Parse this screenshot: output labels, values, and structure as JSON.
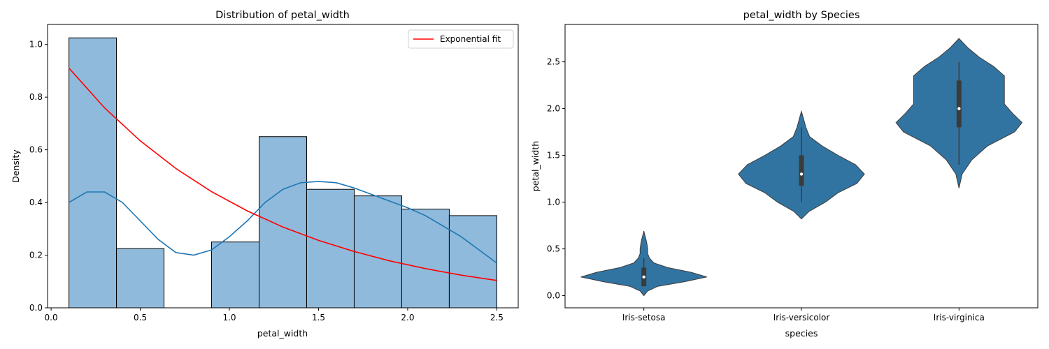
{
  "chart_data": [
    {
      "type": "bar",
      "title": "Distribution of petal_width",
      "xlabel": "petal_width",
      "ylabel": "Density",
      "xlim": [
        -0.02,
        2.62
      ],
      "ylim": [
        0,
        1.076
      ],
      "xticks": [
        "0.0",
        "0.5",
        "1.0",
        "1.5",
        "2.0",
        "2.5"
      ],
      "yticks": [
        "0.0",
        "0.2",
        "0.4",
        "0.6",
        "0.8",
        "1.0"
      ],
      "bar_color": "#8fbadb",
      "bins": [
        {
          "x0": 0.1,
          "x1": 0.3667,
          "value": 1.025
        },
        {
          "x0": 0.3667,
          "x1": 0.6333,
          "value": 0.225
        },
        {
          "x0": 0.6333,
          "x1": 0.9,
          "value": 0.0
        },
        {
          "x0": 0.9,
          "x1": 1.1667,
          "value": 0.25
        },
        {
          "x0": 1.1667,
          "x1": 1.4333,
          "value": 0.65
        },
        {
          "x0": 1.4333,
          "x1": 1.7,
          "value": 0.45
        },
        {
          "x0": 1.7,
          "x1": 1.9667,
          "value": 0.425
        },
        {
          "x0": 1.9667,
          "x1": 2.2333,
          "value": 0.375
        },
        {
          "x0": 2.2333,
          "x1": 2.5,
          "value": 0.35
        }
      ],
      "series": [
        {
          "name": "Exponential fit",
          "color": "#ff0000",
          "x": [
            0.1,
            0.3,
            0.5,
            0.7,
            0.9,
            1.1,
            1.3,
            1.5,
            1.7,
            1.9,
            2.1,
            2.3,
            2.5
          ],
          "y": [
            0.91,
            0.759,
            0.634,
            0.529,
            0.441,
            0.368,
            0.307,
            0.256,
            0.214,
            0.178,
            0.149,
            0.124,
            0.104
          ]
        },
        {
          "color": "#1f77b4",
          "x": [
            0.1,
            0.2,
            0.3,
            0.4,
            0.5,
            0.6,
            0.7,
            0.8,
            0.9,
            1.0,
            1.1,
            1.2,
            1.3,
            1.4,
            1.5,
            1.6,
            1.7,
            1.8,
            1.9,
            2.0,
            2.1,
            2.2,
            2.3,
            2.4,
            2.5
          ],
          "y": [
            0.4,
            0.44,
            0.44,
            0.4,
            0.33,
            0.26,
            0.21,
            0.2,
            0.22,
            0.27,
            0.33,
            0.4,
            0.45,
            0.475,
            0.48,
            0.475,
            0.455,
            0.43,
            0.405,
            0.38,
            0.35,
            0.31,
            0.27,
            0.22,
            0.17
          ]
        }
      ],
      "legend": "upper right"
    },
    {
      "type": "violin",
      "title": "petal_width by Species",
      "xlabel": "species",
      "ylabel": "petal_width",
      "ylim": [
        -0.13,
        2.9
      ],
      "yticks": [
        "0.0",
        "0.5",
        "1.0",
        "1.5",
        "2.0",
        "2.5"
      ],
      "categories": [
        "Iris-setosa",
        "Iris-versicolor",
        "Iris-virginica"
      ],
      "violin_color": "#3274a1",
      "box_color": "#3b3b3b",
      "violins": [
        {
          "category": "Iris-setosa",
          "median": 0.2,
          "q1": 0.1,
          "q3": 0.3,
          "whisker_low": 0.1,
          "whisker_high": 0.4,
          "profile": [
            [
              0.0,
              0.0
            ],
            [
              0.05,
              0.06
            ],
            [
              0.1,
              0.22
            ],
            [
              0.15,
              0.65
            ],
            [
              0.2,
              1.0
            ],
            [
              0.25,
              0.75
            ],
            [
              0.3,
              0.38
            ],
            [
              0.35,
              0.16
            ],
            [
              0.4,
              0.09
            ],
            [
              0.45,
              0.06
            ],
            [
              0.5,
              0.06
            ],
            [
              0.55,
              0.05
            ],
            [
              0.6,
              0.035
            ],
            [
              0.65,
              0.015
            ],
            [
              0.69,
              0.0
            ]
          ]
        },
        {
          "category": "Iris-versicolor",
          "median": 1.3,
          "q1": 1.175,
          "q3": 1.5,
          "whisker_low": 1.0,
          "whisker_high": 1.8,
          "profile": [
            [
              0.82,
              0.0
            ],
            [
              0.9,
              0.12
            ],
            [
              1.0,
              0.38
            ],
            [
              1.1,
              0.58
            ],
            [
              1.2,
              0.88
            ],
            [
              1.3,
              1.0
            ],
            [
              1.4,
              0.86
            ],
            [
              1.5,
              0.58
            ],
            [
              1.6,
              0.33
            ],
            [
              1.7,
              0.13
            ],
            [
              1.8,
              0.07
            ],
            [
              1.9,
              0.03
            ],
            [
              1.97,
              0.0
            ]
          ]
        },
        {
          "category": "Iris-virginica",
          "median": 2.0,
          "q1": 1.8,
          "q3": 2.3,
          "whisker_low": 1.4,
          "whisker_high": 2.5,
          "profile": [
            [
              1.15,
              0.0
            ],
            [
              1.3,
              0.05
            ],
            [
              1.45,
              0.2
            ],
            [
              1.6,
              0.45
            ],
            [
              1.75,
              0.88
            ],
            [
              1.85,
              1.0
            ],
            [
              1.95,
              0.85
            ],
            [
              2.05,
              0.72
            ],
            [
              2.15,
              0.72
            ],
            [
              2.25,
              0.72
            ],
            [
              2.35,
              0.72
            ],
            [
              2.45,
              0.55
            ],
            [
              2.55,
              0.32
            ],
            [
              2.65,
              0.14
            ],
            [
              2.75,
              0.0
            ]
          ]
        }
      ]
    }
  ]
}
